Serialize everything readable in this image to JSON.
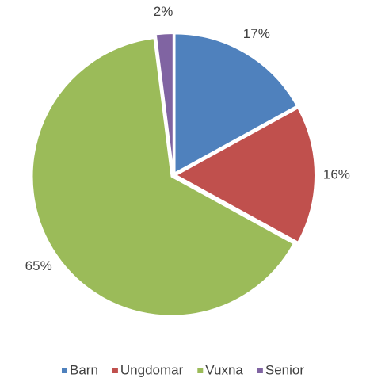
{
  "chart_data": {
    "type": "pie",
    "categories": [
      "Barn",
      "Ungdomar",
      "Vuxna",
      "Senior"
    ],
    "values": [
      17,
      16,
      65,
      2
    ],
    "value_labels": [
      "17%",
      "16%",
      "65%",
      "2%"
    ],
    "colors": [
      "#4f81bd",
      "#c0504d",
      "#9bbb59",
      "#8064a2"
    ],
    "legend": "bottom"
  }
}
